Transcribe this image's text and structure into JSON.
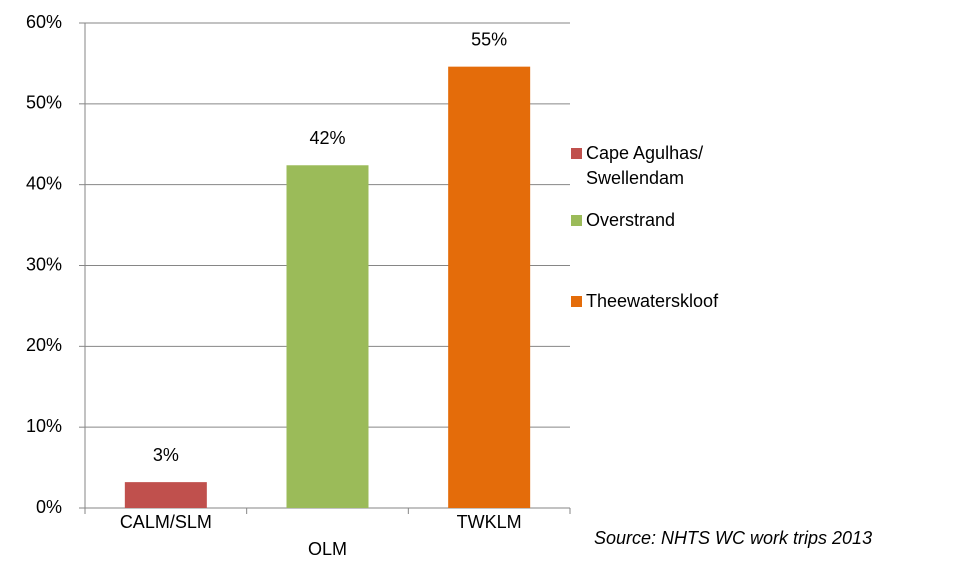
{
  "chart_data": {
    "type": "bar",
    "categories": [
      "CALM/SLM",
      "OLM",
      "TWKLM"
    ],
    "series": [
      {
        "name": "Cape Agulhas/ Swellendam",
        "color": "#c0504d",
        "values": [
          3.2,
          null,
          null
        ],
        "value_labels": [
          "3%",
          null,
          null
        ]
      },
      {
        "name": "Overstrand",
        "color": "#9bbb59",
        "values": [
          null,
          42.4,
          null
        ],
        "value_labels": [
          null,
          "42%",
          null
        ]
      },
      {
        "name": "Theewaterskloof",
        "color": "#e46c0a",
        "values": [
          null,
          null,
          54.6
        ],
        "value_labels": [
          null,
          null,
          "55%"
        ]
      }
    ],
    "ylim": [
      0,
      60
    ],
    "yticks": [
      {
        "value": 0,
        "label": "0%"
      },
      {
        "value": 10,
        "label": "10%"
      },
      {
        "value": 20,
        "label": "20%"
      },
      {
        "value": 30,
        "label": "30%"
      },
      {
        "value": 40,
        "label": "40%"
      },
      {
        "value": 50,
        "label": "50%"
      },
      {
        "value": 60,
        "label": "60%"
      }
    ],
    "grid": true,
    "legend": "right",
    "annotations": [
      "Source: NHTS WC work trips 2013"
    ]
  }
}
